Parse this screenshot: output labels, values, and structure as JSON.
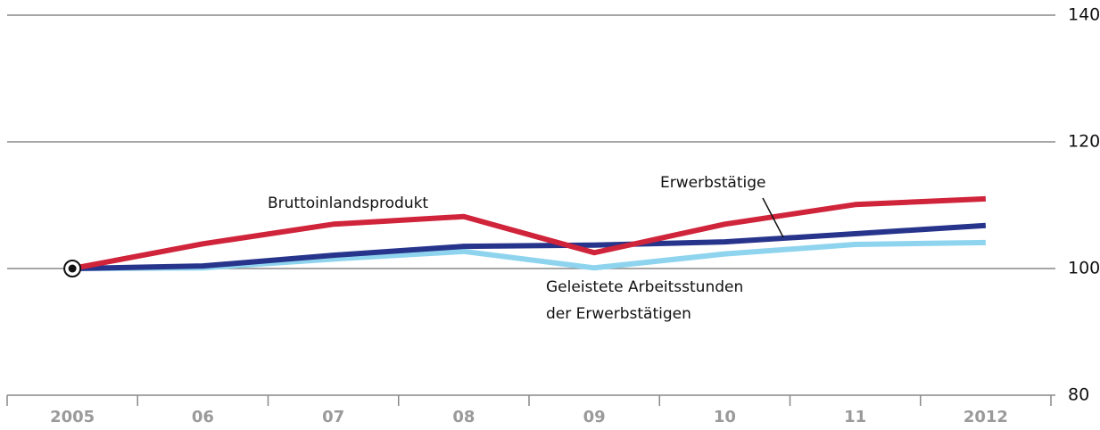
{
  "chart_data": {
    "type": "line",
    "categories": [
      "2005",
      "06",
      "07",
      "08",
      "09",
      "10",
      "11",
      "2012"
    ],
    "series": [
      {
        "name": "Geleistete Arbeitsstunden der Erwerbstätigen",
        "color": "#8fd4ee",
        "values": [
          100,
          100.1,
          101.5,
          102.7,
          100.1,
          102.3,
          103.8,
          104.1
        ]
      },
      {
        "name": "Erwerbstätige",
        "color": "#27348b",
        "values": [
          100,
          100.4,
          102.1,
          103.5,
          103.7,
          104.2,
          105.5,
          106.8
        ]
      },
      {
        "name": "Bruttoinlandsprodukt",
        "color": "#d0243b",
        "values": [
          100,
          103.9,
          107.0,
          108.2,
          102.5,
          107.0,
          110.1,
          111.0
        ]
      }
    ],
    "annotations": [
      {
        "lines": [
          "Geleistete Arbeitsstunden",
          "der Erwerbstätigen"
        ]
      },
      {
        "lines": [
          "Erwerbstätige"
        ]
      },
      {
        "lines": [
          "Bruttoinlandsprodukt"
        ]
      }
    ],
    "ylim": [
      80,
      140
    ],
    "yticks": [
      80,
      100,
      120,
      140
    ],
    "grid": true,
    "y_axis_side": "right"
  }
}
